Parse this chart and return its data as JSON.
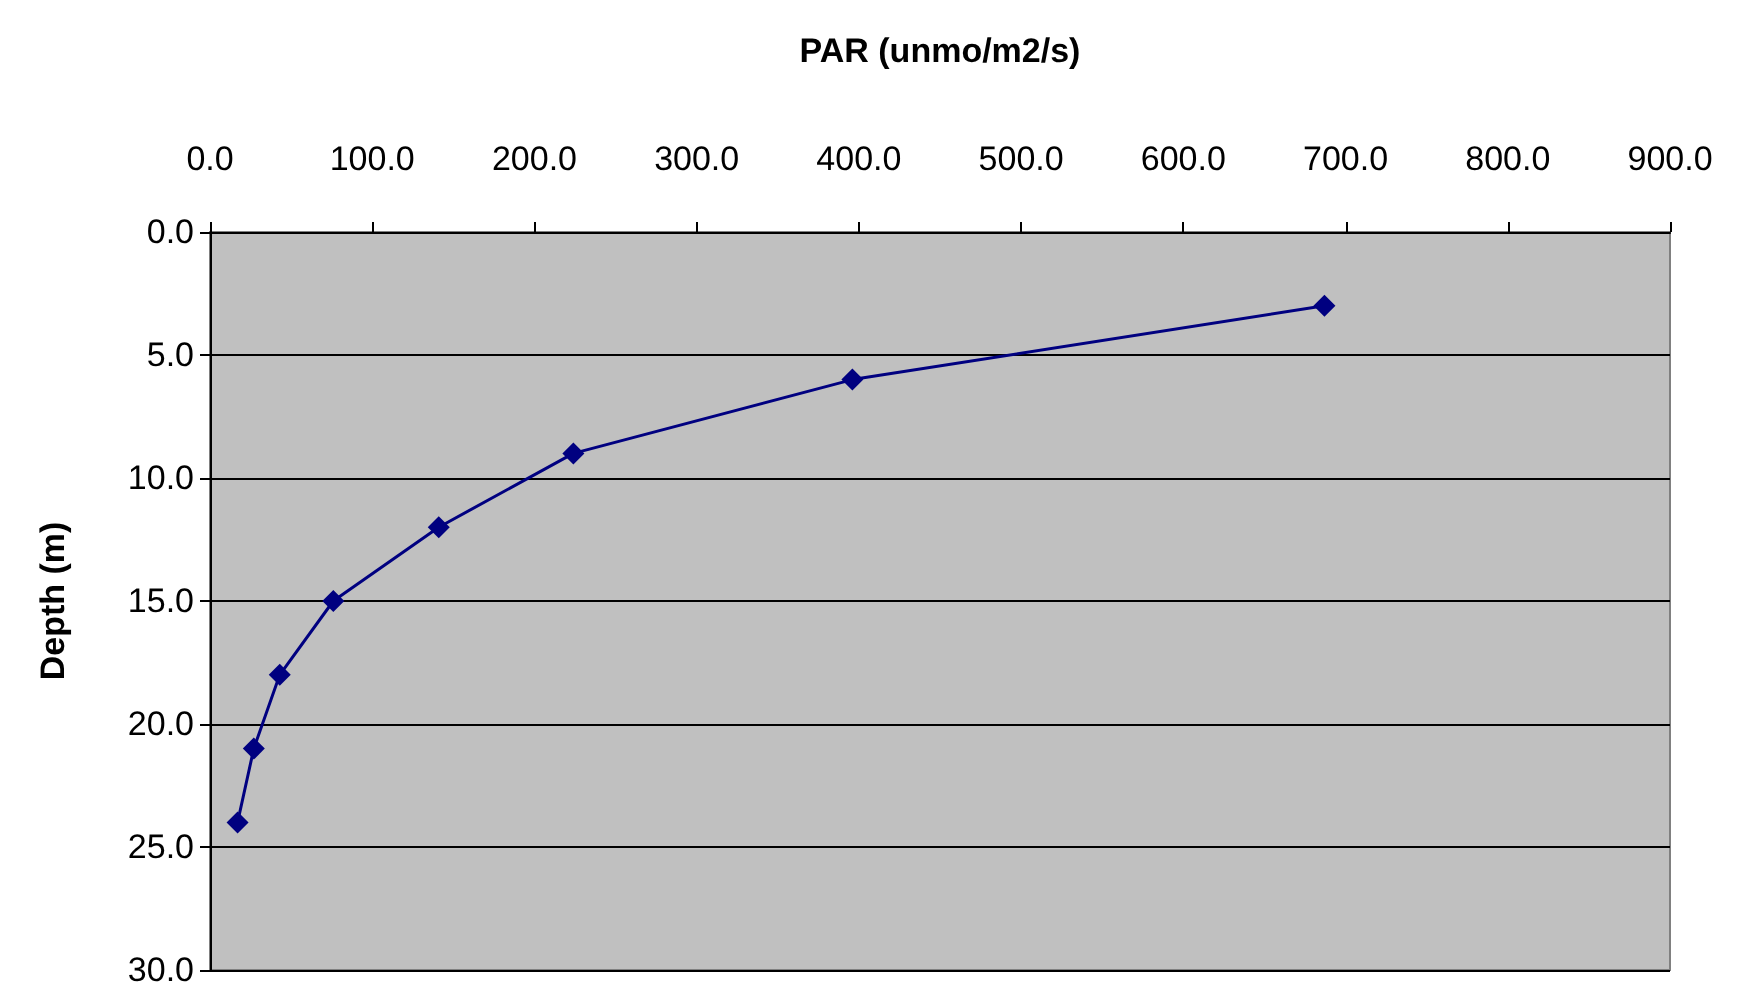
{
  "chart_data": {
    "type": "line",
    "xlabel": "PAR (unmo/m2/s)",
    "ylabel": "Depth (m)",
    "series": [
      {
        "color": "#000080",
        "x": [
          687,
          396,
          224,
          141,
          76,
          43,
          27,
          17
        ],
        "values": [
          3,
          6,
          9,
          12,
          15,
          18,
          21,
          24
        ]
      }
    ],
    "xlim": [
      0,
      900
    ],
    "xticks": [
      {
        "value": 0,
        "label": "0.0"
      },
      {
        "value": 100,
        "label": "100.0"
      },
      {
        "value": 200,
        "label": "200.0"
      },
      {
        "value": 300,
        "label": "300.0"
      },
      {
        "value": 400,
        "label": "400.0"
      },
      {
        "value": 500,
        "label": "500.0"
      },
      {
        "value": 600,
        "label": "600.0"
      },
      {
        "value": 700,
        "label": "700.0"
      },
      {
        "value": 800,
        "label": "800.0"
      },
      {
        "value": 900,
        "label": "900.0"
      }
    ],
    "ylim": [
      30,
      0
    ],
    "yticks": [
      {
        "value": 0,
        "label": "0.0"
      },
      {
        "value": 5,
        "label": "5.0"
      },
      {
        "value": 10,
        "label": "10.0"
      },
      {
        "value": 15,
        "label": "15.0"
      },
      {
        "value": 20,
        "label": "20.0"
      },
      {
        "value": 25,
        "label": "25.0"
      },
      {
        "value": 30,
        "label": "30.0"
      }
    ],
    "grid": "y",
    "marker": "diamond",
    "line_style": "solid"
  }
}
